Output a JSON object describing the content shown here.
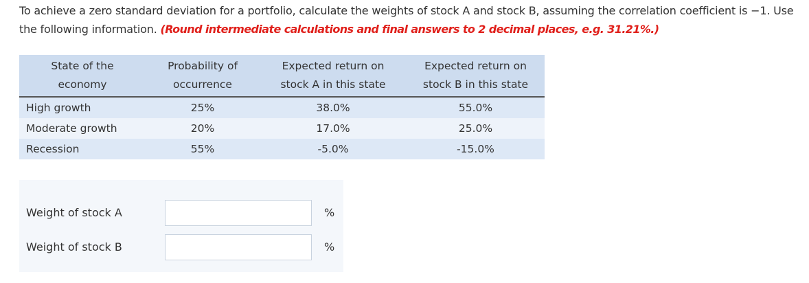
{
  "question": {
    "text": "To achieve a zero standard deviation for a portfolio, calculate the weights of stock A and stock B, assuming the correlation coefficient is −1. Use the following information.",
    "hint": "(Round intermediate calculations and final answers to 2 decimal places, e.g. 31.21%.)"
  },
  "table": {
    "headers": [
      "State of the economy",
      "Probability of occurrence",
      "Expected return on stock A in this state",
      "Expected return on stock B in this state"
    ],
    "rows": [
      [
        "High growth",
        "25%",
        "38.0%",
        "55.0%"
      ],
      [
        "Moderate growth",
        "20%",
        "17.0%",
        "25.0%"
      ],
      [
        "Recession",
        "55%",
        "-5.0%",
        "-15.0%"
      ]
    ]
  },
  "answers": [
    {
      "label": "Weight of stock A",
      "unit": "%"
    },
    {
      "label": "Weight of stock B",
      "unit": "%"
    }
  ]
}
